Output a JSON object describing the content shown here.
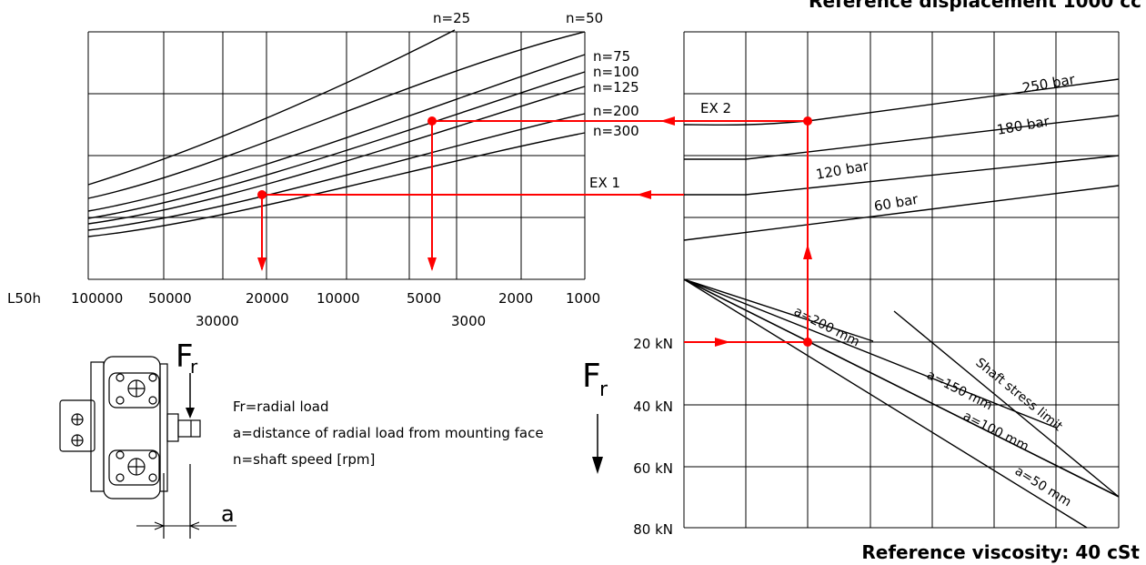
{
  "header": {
    "title_top": "Reference displacement 1000 cc",
    "title_bottom": "Reference viscosity: 40 cSt"
  },
  "colors": {
    "line": "#000000",
    "grid": "#000000",
    "example": "#ff0000"
  },
  "legend": {
    "fr_symbol": "F",
    "fr_sub": "r",
    "a_symbol": "a",
    "lines": [
      "Fr=radial load",
      "a=distance of radial load from mounting face",
      "n=shaft speed [rpm]"
    ]
  },
  "chart_data": [
    {
      "type": "line",
      "title": "",
      "x_axis_name": "L50h",
      "x_scale": "log",
      "x_reversed": true,
      "xlim": [
        100000,
        400
      ],
      "x_ticks": [
        100000,
        50000,
        30000,
        20000,
        10000,
        5000,
        3000,
        2000,
        1000
      ],
      "x_tick_labels": [
        "100000",
        "50000",
        "30000",
        "20000",
        "10000",
        "5000",
        "3000",
        "2000",
        "1000"
      ],
      "y_units": "equivalent bearing load (shared with right panel, unlabelled)",
      "ylim": [
        0,
        100
      ],
      "grid": true,
      "series": [
        {
          "name": "n=25",
          "x": [
            100000,
            50000,
            20000,
            10000,
            5700
          ],
          "y": [
            38,
            48,
            68,
            87,
            100
          ]
        },
        {
          "name": "n=50",
          "x": [
            100000,
            50000,
            20000,
            10000,
            5000,
            2000,
            1000
          ],
          "y": [
            34,
            41,
            57,
            68,
            79,
            91,
            98
          ]
        },
        {
          "name": "n=75",
          "x": [
            100000,
            50000,
            20000,
            10000,
            5000,
            2000,
            1000
          ],
          "y": [
            30,
            36,
            48,
            58,
            67,
            79,
            87
          ]
        },
        {
          "name": "n=100",
          "x": [
            100000,
            50000,
            20000,
            10000,
            5000,
            2000,
            1000
          ],
          "y": [
            27,
            33,
            44,
            53,
            62,
            73,
            82
          ]
        },
        {
          "name": "n=125",
          "x": [
            100000,
            50000,
            20000,
            10000,
            5000,
            2000,
            1000
          ],
          "y": [
            25,
            30,
            40,
            49,
            57,
            68,
            77
          ]
        },
        {
          "name": "n=200",
          "x": [
            100000,
            50000,
            20000,
            10000,
            5000,
            2000,
            1000
          ],
          "y": [
            22,
            26,
            35,
            42,
            50,
            61,
            70
          ]
        },
        {
          "name": "n=300",
          "x": [
            100000,
            50000,
            20000,
            10000,
            5000,
            2000,
            1000
          ],
          "y": [
            19,
            23,
            30,
            37,
            44,
            54,
            63
          ]
        }
      ]
    },
    {
      "type": "line",
      "title": "",
      "x_units": "unlabelled",
      "xlim": [
        0,
        7
      ],
      "ylim": [
        0,
        100
      ],
      "grid": true,
      "series": [
        {
          "name": "250 bar",
          "x": [
            0,
            1,
            7
          ],
          "y": [
            74,
            74,
            93
          ]
        },
        {
          "name": "180 bar",
          "x": [
            0,
            1,
            7
          ],
          "y": [
            62,
            62,
            79
          ]
        },
        {
          "name": "120 bar",
          "x": [
            0,
            1,
            7
          ],
          "y": [
            58,
            58,
            71
          ]
        },
        {
          "name": "60 bar",
          "x": [
            0,
            1,
            7
          ],
          "y": [
            44,
            44,
            49
          ]
        },
        {
          "name": "",
          "x": [
            0,
            1,
            7
          ],
          "y": [
            21,
            23,
            49
          ]
        }
      ]
    },
    {
      "type": "line",
      "title": "",
      "y_axis_label": "Fr",
      "y_tick_labels": [
        "20 kN",
        "40 kN",
        "60 kN",
        "80 kN"
      ],
      "y_ticks": [
        20,
        40,
        60,
        80
      ],
      "ylim": [
        0,
        80
      ],
      "x_units": "unlabelled",
      "xlim": [
        0,
        7
      ],
      "grid": true,
      "series": [
        {
          "name": "a=200 mm",
          "x": [
            0,
            4.0
          ],
          "y": [
            0,
            35
          ]
        },
        {
          "name": "a=150 mm",
          "x": [
            0,
            6.0
          ],
          "y": [
            0,
            48
          ]
        },
        {
          "name": "a=100 mm",
          "x": [
            0,
            7.0
          ],
          "y": [
            0,
            71
          ]
        },
        {
          "name": "a=50 mm",
          "x": [
            0,
            6.3
          ],
          "y": [
            0,
            80
          ]
        },
        {
          "name": "Shaft stress limit",
          "x": [
            3.4,
            7.0
          ],
          "y": [
            10,
            71
          ]
        }
      ]
    }
  ],
  "examples": [
    {
      "name": "EX 1",
      "fr_kN": 20,
      "L50h": 20000
    },
    {
      "name": "EX 2",
      "fr_kN": 20,
      "L50h": 4000
    }
  ]
}
